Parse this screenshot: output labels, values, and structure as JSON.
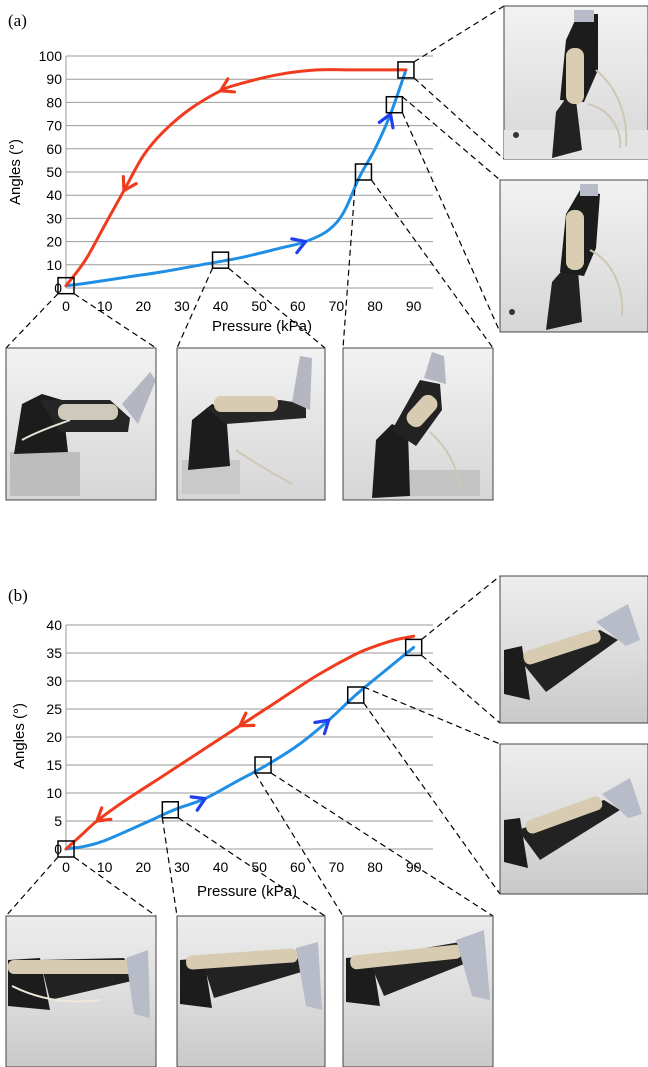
{
  "chart_data": [
    {
      "panel_label": "(a)",
      "type": "line",
      "xlabel": "Pressure (kPa)",
      "ylabel": "Angles (°)",
      "xlim": [
        0,
        95
      ],
      "ylim": [
        0,
        100
      ],
      "xticks": [
        0,
        10,
        20,
        30,
        40,
        50,
        60,
        70,
        80,
        90
      ],
      "yticks": [
        0,
        10,
        20,
        30,
        40,
        50,
        60,
        70,
        80,
        90,
        100
      ],
      "grid": "horizontal",
      "series": [
        {
          "color": "#1f8fe5",
          "arrow_color": "#1f3ff0",
          "direction": "increasing",
          "x": [
            0,
            5,
            15,
            25,
            35,
            45,
            55,
            62,
            68,
            72,
            76,
            80,
            84,
            88
          ],
          "y": [
            1,
            2,
            4.5,
            7,
            10,
            13,
            17,
            20,
            25,
            33,
            48,
            60,
            75,
            94
          ],
          "arrows_at_index": [
            7,
            12
          ]
        },
        {
          "color": "#f03c1e",
          "arrow_color": "#f03c1e",
          "direction": "decreasing",
          "x": [
            88,
            75,
            65,
            55,
            45,
            40,
            32,
            25,
            20,
            15,
            10,
            5,
            0
          ],
          "y": [
            94,
            94,
            94,
            92,
            88,
            85,
            77,
            67,
            57,
            42,
            27,
            12,
            1
          ],
          "arrows_at_index": [
            5,
            9
          ]
        }
      ],
      "markers": [
        {
          "x": 0,
          "y": 1
        },
        {
          "x": 40,
          "y": 12
        },
        {
          "x": 77,
          "y": 50
        },
        {
          "x": 85,
          "y": 79
        },
        {
          "x": 88,
          "y": 94
        }
      ]
    },
    {
      "panel_label": "(b)",
      "type": "line",
      "xlabel": "Pressure (kPa)",
      "ylabel": "Angles (°)",
      "xlim": [
        0,
        95
      ],
      "ylim": [
        0,
        40
      ],
      "xticks": [
        0,
        10,
        20,
        30,
        40,
        50,
        60,
        70,
        80,
        90
      ],
      "yticks": [
        0,
        5,
        10,
        15,
        20,
        25,
        30,
        35,
        40
      ],
      "grid": "horizontal",
      "series": [
        {
          "color": "#1f8fe5",
          "arrow_color": "#1f3ff0",
          "direction": "increasing",
          "x": [
            0,
            5,
            10,
            20,
            28,
            36,
            44,
            52,
            60,
            68,
            75,
            82,
            90
          ],
          "y": [
            0,
            0.5,
            1.5,
            4.5,
            7,
            9,
            12,
            15,
            18.5,
            23,
            27.5,
            31.5,
            36
          ],
          "arrows_at_index": [
            5,
            9
          ]
        },
        {
          "color": "#f03c1e",
          "arrow_color": "#f03c1e",
          "direction": "decreasing",
          "x": [
            90,
            85,
            80,
            75,
            65,
            55,
            45,
            35,
            25,
            15,
            8,
            4,
            0
          ],
          "y": [
            38,
            37.3,
            36.2,
            34.8,
            31,
            26.5,
            22,
            17.5,
            13,
            8.5,
            5,
            2.5,
            0
          ],
          "arrows_at_index": [
            6,
            10
          ]
        }
      ],
      "markers": [
        {
          "x": 0,
          "y": 0
        },
        {
          "x": 27,
          "y": 7
        },
        {
          "x": 51,
          "y": 15
        },
        {
          "x": 75,
          "y": 27.5
        },
        {
          "x": 90,
          "y": 36
        }
      ]
    }
  ]
}
